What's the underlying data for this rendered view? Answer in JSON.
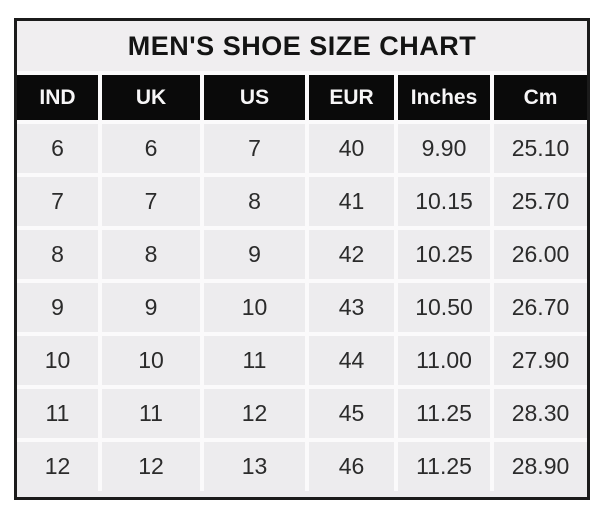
{
  "chart_data": {
    "type": "table",
    "title": "MEN'S SHOE SIZE CHART",
    "columns": [
      "IND",
      "UK",
      "US",
      "EUR",
      "Inches",
      "Cm"
    ],
    "rows": [
      [
        "6",
        "6",
        "7",
        "40",
        "9.90",
        "25.10"
      ],
      [
        "7",
        "7",
        "8",
        "41",
        "10.15",
        "25.70"
      ],
      [
        "8",
        "8",
        "9",
        "42",
        "10.25",
        "26.00"
      ],
      [
        "9",
        "9",
        "10",
        "43",
        "10.50",
        "26.70"
      ],
      [
        "10",
        "10",
        "11",
        "44",
        "11.00",
        "27.90"
      ],
      [
        "11",
        "11",
        "12",
        "45",
        "11.25",
        "28.30"
      ],
      [
        "12",
        "12",
        "13",
        "46",
        "11.25",
        "28.90"
      ]
    ],
    "layout": {
      "legend": "none",
      "grid": "white gridlines between cells",
      "header_style": "black background, white bold text",
      "title_row_spans_all_columns": true
    }
  },
  "colors": {
    "page_bg": "#ffffff",
    "outer_border": "#1b1b1b",
    "title_bg": "#f0eef0",
    "header_bg": "#0a0a0a",
    "header_text": "#f7f6f7",
    "cell_bg": "#edecee",
    "cell_text": "#2b2b2b",
    "gridline": "#fbfafb"
  }
}
